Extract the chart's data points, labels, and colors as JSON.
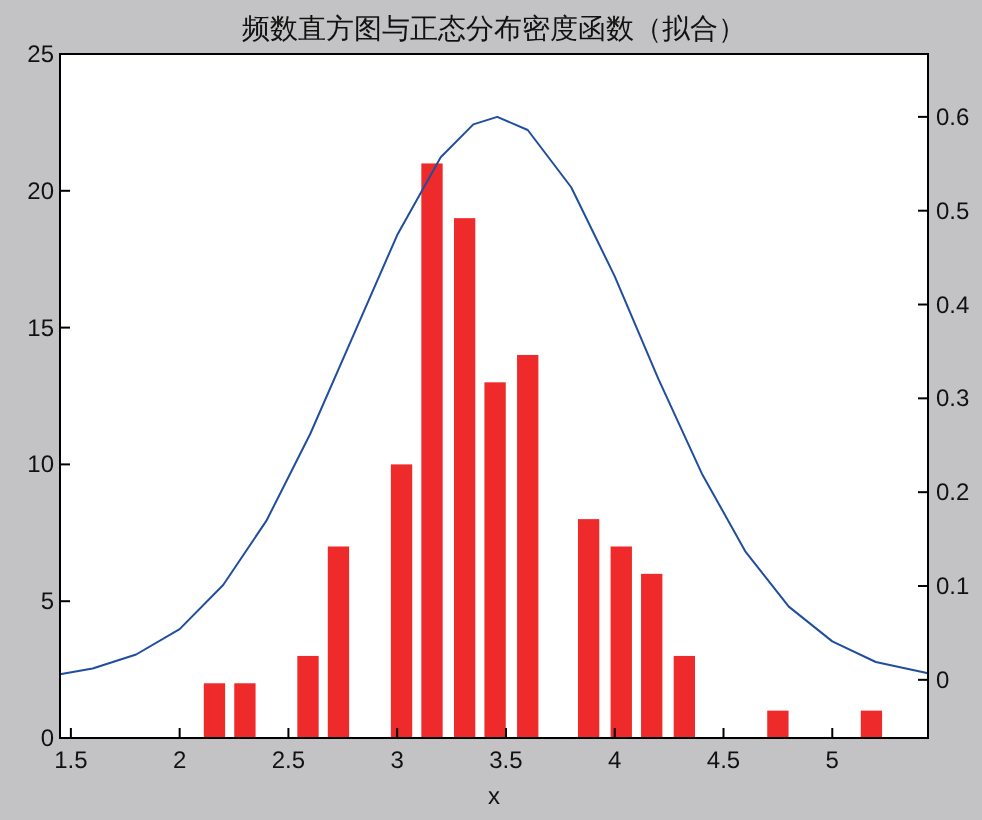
{
  "chart_data": {
    "type": "bar",
    "title": "频数直方图与正态分布密度函数（拟合）",
    "xlabel": "x",
    "x": [
      2.16,
      2.3,
      2.44,
      2.59,
      2.73,
      2.88,
      3.02,
      3.16,
      3.31,
      3.45,
      3.6,
      3.74,
      3.88,
      4.03,
      4.17,
      4.32,
      4.46,
      4.6,
      4.75,
      4.89,
      5.04,
      5.18
    ],
    "xlim": [
      1.45,
      5.44
    ],
    "xticks": [
      1.5,
      2,
      2.5,
      3,
      3.5,
      4,
      4.5,
      5
    ],
    "ylim": [
      0,
      25
    ],
    "yticks": [
      0,
      5,
      10,
      15,
      20,
      25
    ],
    "y2lim": [
      -0.062,
      0.667
    ],
    "y2ticks": [
      0,
      0.1,
      0.2,
      0.3,
      0.4,
      0.5,
      0.6
    ],
    "series": [
      {
        "color": "#ee2a2a",
        "values": [
          2,
          2,
          0,
          3,
          7,
          0,
          10,
          21,
          19,
          13,
          14,
          0,
          8,
          7,
          6,
          3,
          0,
          0,
          1,
          0,
          0,
          1
        ]
      },
      {
        "type": "line",
        "axis": "y2",
        "color": "#1f4e9e",
        "x": [
          1.45,
          1.6,
          1.8,
          2.0,
          2.2,
          2.4,
          2.6,
          2.8,
          3.0,
          3.2,
          3.35,
          3.46,
          3.6,
          3.8,
          4.0,
          4.2,
          4.4,
          4.6,
          4.8,
          5.0,
          5.2,
          5.44
        ],
        "values": [
          0.006,
          0.012,
          0.027,
          0.054,
          0.101,
          0.17,
          0.262,
          0.368,
          0.474,
          0.557,
          0.592,
          0.6,
          0.586,
          0.525,
          0.43,
          0.321,
          0.22,
          0.137,
          0.078,
          0.041,
          0.019,
          0.007
        ]
      }
    ]
  }
}
